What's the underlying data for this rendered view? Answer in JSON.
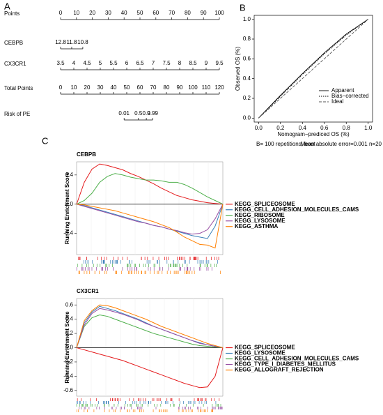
{
  "chart_data": [
    {
      "type": "nomogram",
      "panel": "A",
      "rows": [
        {
          "label": "Points",
          "ticks": [
            0,
            10,
            20,
            30,
            40,
            50,
            60,
            70,
            80,
            90,
            100
          ],
          "xlim": [
            0,
            100
          ]
        },
        {
          "label": "CEBPB",
          "ticks": [
            12.8,
            11.8,
            10.8
          ],
          "points": [
            0,
            7,
            14
          ]
        },
        {
          "label": "CX3CR1",
          "ticks": [
            3.5,
            4,
            4.5,
            5,
            5.5,
            6,
            6.5,
            7,
            7.5,
            8,
            8.5,
            9,
            9.5
          ],
          "xlim": [
            3.5,
            9.5
          ]
        },
        {
          "label": "Total Points",
          "ticks": [
            0,
            10,
            20,
            30,
            40,
            50,
            60,
            70,
            80,
            90,
            100,
            110,
            120
          ],
          "xlim": [
            0,
            120
          ]
        },
        {
          "label": "Risk of PE",
          "ticks": [
            0.01,
            0.5,
            0.9,
            0.99
          ],
          "points": [
            40,
            49,
            54,
            58
          ]
        }
      ]
    },
    {
      "type": "line",
      "panel": "B",
      "xlabel": "Nomogram−prediced OS (%)",
      "ylabel": "Observed OS (%)",
      "xlim": [
        -0.04,
        1.04
      ],
      "ylim": [
        -0.04,
        1.04
      ],
      "xticks": [
        {
          "value": 0,
          "label": "0.0"
        },
        0.2,
        0.4,
        0.6,
        0.8,
        {
          "value": 1,
          "label": "1.0"
        }
      ],
      "yticks": [
        {
          "value": 0,
          "label": "0.0"
        },
        0.2,
        0.4,
        0.6,
        0.8,
        {
          "value": 1,
          "label": "1.0"
        }
      ],
      "x": [
        0,
        0.2,
        0.4,
        0.6,
        0.8,
        1
      ],
      "series": [
        {
          "name": "Apparent",
          "color": "#000000",
          "dash": "solid",
          "values": [
            0,
            0.23,
            0.45,
            0.66,
            0.85,
            1
          ]
        },
        {
          "name": "Bias−corrected",
          "color": "#000000",
          "dash": "dotted",
          "values": [
            0,
            0.22,
            0.44,
            0.65,
            0.84,
            1
          ]
        },
        {
          "name": "Ideal",
          "color": "#555555",
          "dash": "dashed",
          "values": [
            0,
            0.2,
            0.4,
            0.6,
            0.8,
            1
          ]
        }
      ],
      "notes": [
        "B= 100 repetitions, boot",
        "Mean absolute error=0.001 n=20"
      ]
    },
    {
      "type": "gsea",
      "panel": "C",
      "title": "CEBPB",
      "ylabel": "Running Enrichment Score",
      "ylim": [
        -0.69,
        0.58
      ],
      "yticks": [
        -0.4,
        {
          "value": 0,
          "label": "0.0"
        },
        0.4
      ],
      "series": [
        {
          "name": "KEGG_SPLICEOSOME",
          "color": "#e41a1c",
          "values": [
            0,
            0.3,
            0.48,
            0.55,
            0.53,
            0.5,
            0.47,
            0.42,
            0.38,
            0.33,
            0.28,
            0.22,
            0.17,
            0.12,
            0.09,
            0.06,
            0.04,
            0.02,
            0.01,
            0
          ]
        },
        {
          "name": "KEGG_CELL_ADHESION_MOLECULES_CAMS",
          "color": "#377eb8",
          "values": [
            0,
            -0.02,
            -0.05,
            -0.08,
            -0.11,
            -0.14,
            -0.17,
            -0.2,
            -0.23,
            -0.26,
            -0.29,
            -0.31,
            -0.34,
            -0.37,
            -0.4,
            -0.43,
            -0.45,
            -0.47,
            -0.3,
            0
          ]
        },
        {
          "name": "KEGG_RIBOSOME",
          "color": "#4daf4a",
          "values": [
            0,
            0.05,
            0.15,
            0.3,
            0.38,
            0.42,
            0.4,
            0.37,
            0.35,
            0.33,
            0.33,
            0.32,
            0.3,
            0.3,
            0.27,
            0.22,
            0.16,
            0.1,
            0.05,
            0
          ]
        },
        {
          "name": "KEGG_LYSOSOME",
          "color": "#984ea3",
          "values": [
            0,
            -0.03,
            -0.06,
            -0.09,
            -0.12,
            -0.15,
            -0.18,
            -0.21,
            -0.24,
            -0.26,
            -0.29,
            -0.31,
            -0.34,
            -0.36,
            -0.39,
            -0.41,
            -0.4,
            -0.35,
            -0.2,
            0
          ]
        },
        {
          "name": "KEGG_ASTHMA",
          "color": "#ff7f00",
          "values": [
            0,
            -0.01,
            -0.03,
            -0.05,
            -0.07,
            -0.09,
            -0.12,
            -0.15,
            -0.18,
            -0.21,
            -0.24,
            -0.28,
            -0.32,
            -0.38,
            -0.45,
            -0.5,
            -0.55,
            -0.56,
            -0.6,
            0
          ]
        }
      ]
    },
    {
      "type": "gsea",
      "title": "CX3CR1",
      "ylabel": "Running Enrichment Score",
      "ylim": [
        -0.68,
        0.69
      ],
      "yticks": [
        -0.6,
        -0.4,
        -0.2,
        {
          "value": 0,
          "label": "0.0"
        },
        0.2,
        0.4,
        0.6
      ],
      "series": [
        {
          "name": "KEGG_SPLICEOSOME",
          "color": "#e41a1c",
          "values": [
            0,
            -0.03,
            -0.06,
            -0.09,
            -0.12,
            -0.15,
            -0.18,
            -0.22,
            -0.26,
            -0.3,
            -0.34,
            -0.38,
            -0.42,
            -0.46,
            -0.5,
            -0.53,
            -0.56,
            -0.55,
            -0.4,
            0
          ]
        },
        {
          "name": "KEGG_LYSOSOME",
          "color": "#377eb8",
          "values": [
            0,
            0.35,
            0.5,
            0.58,
            0.55,
            0.52,
            0.48,
            0.44,
            0.4,
            0.35,
            0.3,
            0.26,
            0.22,
            0.18,
            0.14,
            0.1,
            0.07,
            0.04,
            0.02,
            0
          ]
        },
        {
          "name": "KEGG_CELL_ADHESION_MOLECULES_CAMS",
          "color": "#4daf4a",
          "values": [
            0,
            0.3,
            0.42,
            0.46,
            0.44,
            0.4,
            0.36,
            0.32,
            0.28,
            0.24,
            0.2,
            0.17,
            0.14,
            0.11,
            0.08,
            0.05,
            0.03,
            0.02,
            0.01,
            0
          ]
        },
        {
          "name": "KEGG_TYPE_I_DIABETES_MELLITUS",
          "color": "#984ea3",
          "values": [
            0,
            0.32,
            0.48,
            0.55,
            0.53,
            0.5,
            0.47,
            0.43,
            0.39,
            0.34,
            0.3,
            0.26,
            0.22,
            0.18,
            0.14,
            0.1,
            0.06,
            0.04,
            0.02,
            0
          ]
        },
        {
          "name": "KEGG_ALLOGRAFT_REJECTION",
          "color": "#ff7f00",
          "values": [
            0,
            0.38,
            0.52,
            0.6,
            0.59,
            0.56,
            0.52,
            0.48,
            0.44,
            0.4,
            0.35,
            0.3,
            0.26,
            0.22,
            0.18,
            0.14,
            0.1,
            0.06,
            0.03,
            0
          ]
        }
      ]
    }
  ]
}
